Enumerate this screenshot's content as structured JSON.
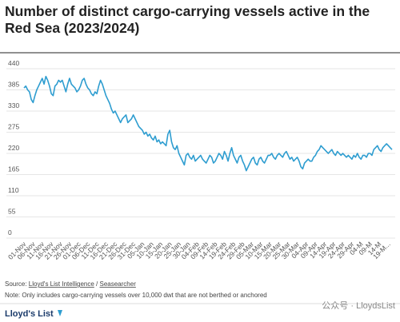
{
  "chart_data": {
    "type": "line",
    "title": [
      "Number of distinct cargo-carrying vessels active in the",
      "Red Sea (2023/2024)"
    ],
    "source": {
      "prefix": "Source: ",
      "links": [
        "Lloyd's List Intelligence",
        "Seasearcher"
      ],
      "separator": " / "
    },
    "note": "Note: Only includes cargo-carrying vessels over 10,000 dwt that are not berthed or anchored",
    "brand": "Lloyd's List",
    "watermark": "公众号 · LloydsList",
    "ylim": [
      0,
      440
    ],
    "yticks": [
      0,
      55,
      110,
      165,
      220,
      275,
      330,
      385,
      440
    ],
    "grid": true,
    "categories": [
      "01-Nov",
      null,
      null,
      null,
      null,
      "06-Nov",
      null,
      null,
      null,
      null,
      "11-Nov",
      null,
      null,
      null,
      null,
      "16-Nov",
      null,
      null,
      null,
      null,
      "21-Nov",
      null,
      null,
      null,
      null,
      "26-Nov",
      null,
      null,
      null,
      null,
      "01-Dec",
      null,
      null,
      null,
      null,
      "06-Dec",
      null,
      null,
      null,
      null,
      "11-Dec",
      null,
      null,
      null,
      null,
      "16-Dec",
      null,
      null,
      null,
      null,
      "21-Dec",
      null,
      null,
      null,
      null,
      "26-Dec",
      null,
      null,
      null,
      null,
      "31-Dec",
      null,
      null,
      null,
      null,
      "05-Jan",
      null,
      null,
      null,
      null,
      "10-Jan",
      null,
      null,
      null,
      null,
      "15-Jan",
      null,
      null,
      null,
      null,
      "20-Jan",
      null,
      null,
      null,
      null,
      "25-Jan",
      null,
      null,
      null,
      null,
      "30-Jan",
      null,
      null,
      null,
      null,
      "04-Feb",
      null,
      null,
      null,
      null,
      "09-Feb",
      null,
      null,
      null,
      null,
      "14-Feb",
      null,
      null,
      null,
      null,
      "19-Feb",
      null,
      null,
      null,
      null,
      "24-Feb",
      null,
      null,
      null,
      null,
      "29-Feb",
      null,
      null,
      null,
      null,
      "05-Mar",
      null,
      null,
      null,
      null,
      "10-Mar",
      null,
      null,
      null,
      null,
      "15-Mar",
      null,
      null,
      null,
      null,
      "20-Mar",
      null,
      null,
      null,
      null,
      "25-Mar",
      null,
      null,
      null,
      null,
      "30-Mar",
      null,
      null,
      null,
      null,
      "04-Apr",
      null,
      null,
      null,
      null,
      "09-Apr",
      null,
      null,
      null,
      null,
      "14-Apr",
      null,
      null,
      null,
      null,
      "19-Apr",
      null,
      null,
      null,
      null,
      "24-Apr",
      null,
      null,
      null,
      null,
      "29-Apr",
      null,
      null,
      null,
      null,
      "04-M",
      null,
      null,
      null,
      null,
      "09-M",
      null,
      null,
      null,
      null,
      "14-M",
      null,
      null,
      null,
      null,
      "19-M...",
      null,
      null
    ],
    "series": [
      {
        "color": "#2e9dd0",
        "values": [
          390,
          395,
          385,
          380,
          360,
          352,
          370,
          385,
          395,
          405,
          415,
          400,
          420,
          410,
          395,
          375,
          370,
          395,
          400,
          410,
          405,
          410,
          395,
          380,
          400,
          415,
          400,
          395,
          390,
          380,
          385,
          395,
          410,
          415,
          400,
          390,
          385,
          375,
          370,
          380,
          375,
          395,
          410,
          400,
          385,
          370,
          360,
          350,
          335,
          325,
          330,
          320,
          310,
          300,
          310,
          315,
          320,
          300,
          305,
          310,
          320,
          310,
          300,
          290,
          285,
          280,
          270,
          275,
          265,
          270,
          260,
          255,
          265,
          250,
          255,
          245,
          250,
          245,
          240,
          270,
          280,
          250,
          235,
          230,
          240,
          220,
          210,
          200,
          190,
          215,
          220,
          210,
          205,
          215,
          200,
          205,
          210,
          215,
          205,
          200,
          195,
          205,
          215,
          210,
          195,
          200,
          210,
          220,
          215,
          205,
          225,
          215,
          200,
          220,
          235,
          215,
          205,
          195,
          210,
          215,
          200,
          190,
          175,
          185,
          195,
          205,
          210,
          195,
          190,
          205,
          210,
          200,
          195,
          205,
          215,
          215,
          220,
          210,
          205,
          215,
          220,
          215,
          210,
          220,
          225,
          215,
          205,
          210,
          200,
          205,
          210,
          200,
          185,
          180,
          195,
          200,
          205,
          200,
          200,
          210,
          215,
          225,
          230,
          240,
          235,
          230,
          225,
          220,
          225,
          230,
          220,
          215,
          225,
          220,
          215,
          220,
          215,
          210,
          215,
          210,
          205,
          215,
          210,
          220,
          210,
          205,
          215,
          215,
          210,
          220,
          220,
          215,
          230,
          235,
          240,
          230,
          225,
          235,
          240,
          245,
          240,
          235,
          230
        ]
      }
    ]
  }
}
